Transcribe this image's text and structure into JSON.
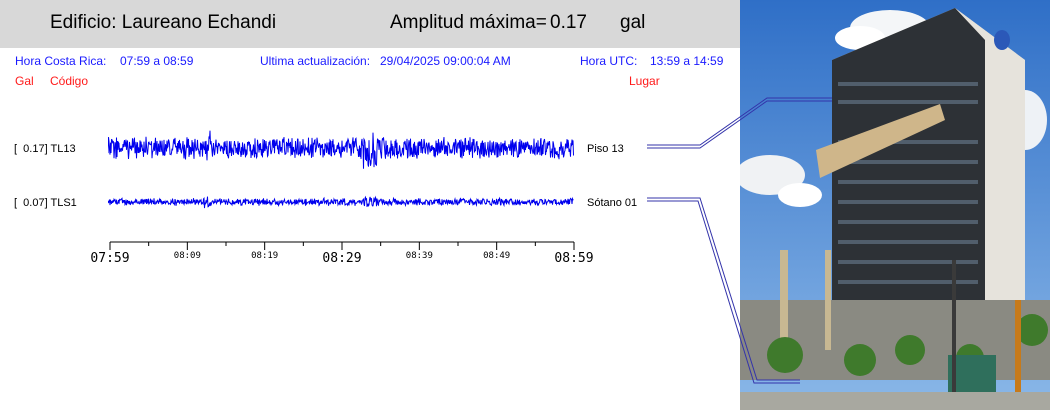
{
  "header": {
    "building_label": "Edificio: Laureano Echandi",
    "amplitude_label": "Amplitud máxima=",
    "amplitude_value": "0.17",
    "amplitude_unit": "gal"
  },
  "info": {
    "cr_label": "Hora Costa Rica:",
    "cr_range": "07:59 a 08:59",
    "update_label": "Ultima actualización:",
    "update_value": "29/04/2025 09:00:04 AM",
    "utc_label": "Hora UTC:",
    "utc_range": "13:59 a 14:59"
  },
  "columns": {
    "gal": "Gal",
    "code": "Código",
    "place": "Lugar"
  },
  "stations": [
    {
      "amp": "[  0.17] TL13",
      "location": "Piso 13"
    },
    {
      "amp": "[  0.07] TLS1",
      "location": "Sótano 01"
    }
  ],
  "axis": {
    "ticks": [
      "07:59",
      "08:09",
      "08:19",
      "08:29",
      "08:39",
      "08:49",
      "08:59"
    ]
  },
  "colors": {
    "trace": "#0000ee",
    "info": "#1a1aff",
    "heading_red": "#ff1a1a",
    "header_bg": "#d8d8d8"
  },
  "image": {
    "subject": "building-photo"
  }
}
